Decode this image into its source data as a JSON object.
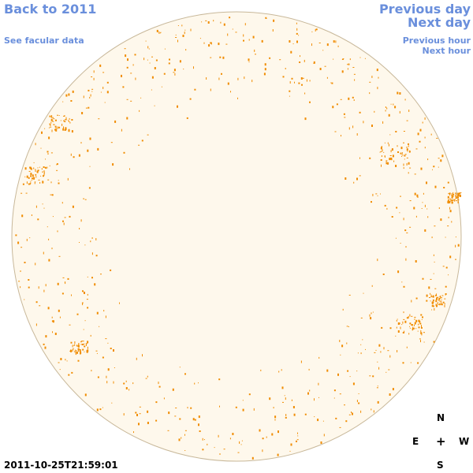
{
  "nav": {
    "back_label": "Back to 2011",
    "facular_label": "See facular data",
    "prev_day_label": "Previous day",
    "next_day_label": "Next day",
    "prev_hour_label": "Previous hour",
    "next_hour_label": "Next hour"
  },
  "compass": {
    "north": "N",
    "east": "E",
    "center": "+",
    "west": "W",
    "south": "S"
  },
  "timestamp": "2011-10-25T21:59:01",
  "colors": {
    "link": "#6a8fdc",
    "disk_fill": "#fef8ec",
    "disk_edge": "#c8b89a",
    "facula": "#f08c00"
  }
}
